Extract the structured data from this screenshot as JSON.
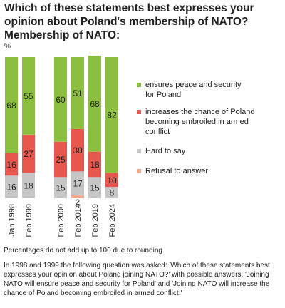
{
  "chart_data": {
    "type": "bar",
    "stacked": true,
    "title": "Which of these statements best expresses your opinion about Poland's membership of NATO?\nMembership of NATO:",
    "unit": "%",
    "categories": [
      "Jan 1998",
      "Feb 1999",
      "Feb 2000",
      "Feb 2014",
      "Feb 2019",
      "Feb 2024"
    ],
    "series": [
      {
        "name": "Refusal to answer",
        "color": "#f4a98c",
        "values": [
          0,
          0,
          0,
          2,
          0,
          0
        ],
        "labels": [
          "",
          "",
          "",
          "2",
          "",
          ""
        ]
      },
      {
        "name": "Hard to say",
        "color": "#c6c6c6",
        "values": [
          16,
          18,
          15,
          17,
          15,
          8
        ]
      },
      {
        "name": "increases the chance of Poland becoming embroiled in armed conflict",
        "color": "#e8574e",
        "values": [
          16,
          27,
          25,
          30,
          18,
          10
        ]
      },
      {
        "name": "ensures peace and security for Poland",
        "color": "#8cbf3f",
        "values": [
          68,
          55,
          60,
          51,
          68,
          82
        ]
      }
    ],
    "legend": [
      {
        "name": "ensures peace and security for Poland",
        "color": "#8cbf3f"
      },
      {
        "name": "increases the chance of Poland becoming embroiled in armed conflict",
        "color": "#e8574e"
      },
      {
        "name": "Hard to say",
        "color": "#c6c6c6"
      },
      {
        "name": "Refusal to answer",
        "color": "#f4a98c"
      }
    ],
    "legend_position": "right",
    "ylim": [
      0,
      100
    ],
    "grid": false,
    "notes": [
      "Percentages do not add up to 100 due to rounding.",
      "In 1998 and 1999 the following question was asked: 'Which of these statements best expresses your opinion about Poland joining NATO?' with possible answers: 'Joining NATO will ensure peace and security for Poland' and 'Joining NATO will increase the chance of Poland becoming embroiled in armed conflict.'"
    ]
  }
}
